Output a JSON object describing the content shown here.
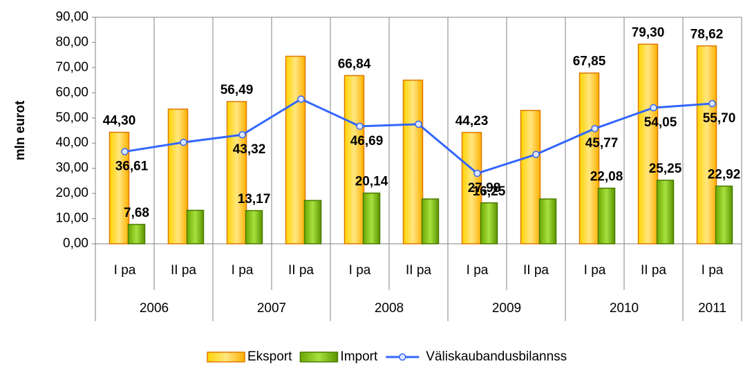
{
  "chart_data": {
    "type": "bar-line",
    "y_label": "mln eurot",
    "groups": [
      {
        "name": "2006",
        "categories": [
          "I pa",
          "II pa"
        ]
      },
      {
        "name": "2007",
        "categories": [
          "I pa",
          "II pa"
        ]
      },
      {
        "name": "2008",
        "categories": [
          "I pa",
          "II pa"
        ]
      },
      {
        "name": "2009",
        "categories": [
          "I pa",
          "II pa"
        ]
      },
      {
        "name": "2010",
        "categories": [
          "I pa",
          "II pa"
        ]
      },
      {
        "name": "2011",
        "categories": [
          "I pa"
        ]
      }
    ],
    "series": [
      {
        "name": "Eksport",
        "type": "bar",
        "color": "#ffc000",
        "border": "#e07800",
        "values": [
          44.3,
          53.5,
          56.49,
          74.5,
          66.84,
          65.0,
          44.23,
          53.0,
          67.85,
          79.3,
          78.62
        ],
        "value_labels": [
          "44,30",
          null,
          "56,49",
          null,
          "66,84",
          null,
          "44,23",
          null,
          "67,85",
          "79,30",
          "78,62"
        ]
      },
      {
        "name": "Import",
        "type": "bar",
        "color": "#8cc800",
        "border": "#4a7a00",
        "values": [
          7.68,
          13.3,
          13.17,
          17.2,
          20.14,
          17.8,
          16.25,
          17.8,
          22.08,
          25.25,
          22.92
        ],
        "value_labels": [
          "7,68",
          null,
          "13,17",
          null,
          "20,14",
          null,
          "16,25",
          null,
          "22,08",
          "25,25",
          "22,92"
        ]
      },
      {
        "name": "Väliskaubandusbilannss",
        "type": "line",
        "color": "#3366ff",
        "values": [
          36.61,
          40.3,
          43.32,
          57.5,
          46.69,
          47.5,
          27.98,
          35.5,
          45.77,
          54.05,
          55.7
        ],
        "value_labels": [
          "36,61",
          null,
          "43,32",
          null,
          "46,69",
          null,
          "27,98",
          null,
          "45,77",
          "54,05",
          "55,70"
        ]
      }
    ],
    "ylim": [
      0,
      90
    ],
    "yticks": [
      {
        "value": 0,
        "label": "0,00"
      },
      {
        "value": 10,
        "label": "10,00"
      },
      {
        "value": 20,
        "label": "20,00"
      },
      {
        "value": 30,
        "label": "30,00"
      },
      {
        "value": 40,
        "label": "40,00"
      },
      {
        "value": 50,
        "label": "50,00"
      },
      {
        "value": 60,
        "label": "60,00"
      },
      {
        "value": 70,
        "label": "70,00"
      },
      {
        "value": 80,
        "label": "80,00"
      },
      {
        "value": 90,
        "label": "90,00"
      }
    ],
    "legend": "bottom"
  }
}
